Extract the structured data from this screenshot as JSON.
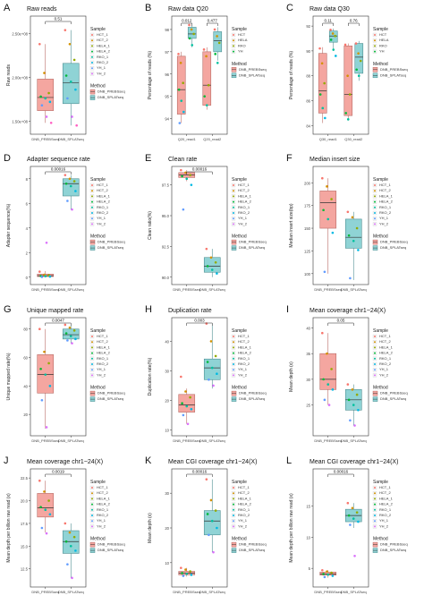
{
  "figure": {
    "method_legend": {
      "title": "Method",
      "items": [
        "DNB_PREBSseq",
        "DNB_SPLATseq"
      ]
    },
    "colors": {
      "box_a": "#F4A6A0",
      "box_a_edge": "#B86A64",
      "box_b": "#8FD3D5",
      "box_b_edge": "#4E8F92",
      "points": [
        "#F8766D",
        "#D39200",
        "#93AA00",
        "#00BA38",
        "#00C19F",
        "#00B9E3",
        "#619CFF",
        "#DB72FB",
        "#FF61C3"
      ]
    }
  },
  "chart_data": [
    {
      "panel": "A",
      "type": "box",
      "title": "Raw reads",
      "ylabel": "Raw reads",
      "categories": [
        "DNB_PREBSseq",
        "DNB_SPLATseq"
      ],
      "yticks": [
        "1.50e+08",
        "2.00e+08",
        "2.50e+08"
      ],
      "ytick_values": [
        1.5,
        2.0,
        2.5
      ],
      "ylim": [
        1.35,
        2.7
      ],
      "significance": [
        {
          "label": "0.51",
          "groups": [
            0,
            1
          ]
        }
      ],
      "boxes": [
        {
          "group": 0,
          "min": 1.48,
          "q1": 1.62,
          "median": 1.77,
          "q3": 1.98,
          "max": 2.38,
          "points": [
            2.38,
            2.05,
            1.82,
            1.78,
            1.76,
            1.72,
            1.68,
            1.55,
            1.48
          ]
        },
        {
          "group": 1,
          "min": 1.45,
          "q1": 1.7,
          "median": 1.94,
          "q3": 2.16,
          "max": 2.54,
          "points": [
            2.54,
            2.38,
            2.2,
            2.02,
            1.95,
            1.86,
            1.76,
            1.55,
            1.45
          ]
        }
      ],
      "sample_legend": {
        "title": "Sample",
        "items": [
          "HCT_1",
          "HCT_2",
          "HELA_1",
          "HELA_2",
          "RKO_1",
          "RKO_2",
          "YH_1",
          "YH_2"
        ]
      },
      "has_method_legend": true
    },
    {
      "panel": "B",
      "type": "box",
      "title": "Raw data Q20",
      "ylabel": "Percentage of reads (%)",
      "categories": [
        "Q20_read1",
        "Q20_read2"
      ],
      "yticks": [
        "94",
        "95",
        "96",
        "97",
        "98"
      ],
      "ytick_values": [
        94,
        95,
        96,
        97,
        98
      ],
      "ylim": [
        93.3,
        98.6
      ],
      "significance": [
        {
          "label": "0.012",
          "groups": [
            0,
            0
          ]
        },
        {
          "label": "0.477",
          "groups": [
            1,
            1
          ]
        }
      ],
      "dodge": true,
      "boxes": [
        {
          "group": 0,
          "series": 0,
          "min": 93.8,
          "q1": 94.2,
          "median": 95.3,
          "q3": 96.8,
          "max": 97.0,
          "points": [
            96.9,
            96.5,
            95.6,
            95.3,
            94.8,
            94.3,
            93.8
          ]
        },
        {
          "group": 0,
          "series": 1,
          "min": 97.2,
          "q1": 97.6,
          "median": 97.8,
          "q3": 98.1,
          "max": 98.2,
          "points": [
            98.2,
            98.0,
            97.8,
            97.6,
            97.3
          ]
        },
        {
          "group": 1,
          "series": 0,
          "min": 94.4,
          "q1": 94.6,
          "median": 95.5,
          "q3": 97.0,
          "max": 97.2,
          "points": [
            97.1,
            96.8,
            95.5,
            95.0,
            94.6
          ]
        },
        {
          "group": 1,
          "series": 1,
          "min": 96.6,
          "q1": 97.0,
          "median": 97.5,
          "q3": 97.9,
          "max": 98.1,
          "points": [
            98.0,
            97.7,
            97.4,
            96.9,
            96.5
          ]
        }
      ],
      "sample_legend": {
        "title": "Sample",
        "items": [
          "HCT",
          "HELA",
          "RKO",
          "YH"
        ]
      },
      "has_method_legend": true
    },
    {
      "panel": "C",
      "type": "box",
      "title": "Raw data Q30",
      "ylabel": "Percentage of reads (%)",
      "categories": [
        "Q30_read1",
        "Q30_read2"
      ],
      "yticks": [
        "84",
        "86",
        "88",
        "90",
        "92"
      ],
      "ytick_values": [
        84,
        86,
        88,
        90,
        92
      ],
      "ylim": [
        83.3,
        92.8
      ],
      "significance": [
        {
          "label": "0.11",
          "groups": [
            0,
            0
          ]
        },
        {
          "label": "0.76",
          "groups": [
            1,
            1
          ]
        }
      ],
      "dodge": true,
      "boxes": [
        {
          "group": 0,
          "series": 0,
          "min": 84.2,
          "q1": 85.0,
          "median": 86.8,
          "q3": 89.8,
          "max": 90.3,
          "points": [
            90.2,
            89.0,
            87.4,
            86.5,
            85.4,
            84.6
          ]
        },
        {
          "group": 0,
          "series": 1,
          "min": 90.0,
          "q1": 90.7,
          "median": 91.2,
          "q3": 91.6,
          "max": 91.8,
          "points": [
            91.7,
            91.4,
            91.2,
            90.9,
            90.1,
            89.6
          ]
        },
        {
          "group": 1,
          "series": 0,
          "min": 84.4,
          "q1": 84.8,
          "median": 86.5,
          "q3": 90.4,
          "max": 90.6,
          "points": [
            90.5,
            88.0,
            86.5,
            85.0,
            84.5
          ]
        },
        {
          "group": 1,
          "series": 1,
          "min": 87.6,
          "q1": 88.2,
          "median": 89.5,
          "q3": 90.6,
          "max": 90.8,
          "points": [
            90.6,
            89.8,
            89.2,
            88.5,
            88.0
          ]
        }
      ],
      "sample_legend": {
        "title": "Sample",
        "items": [
          "HCT",
          "HELA",
          "RKO",
          "YH"
        ]
      },
      "has_method_legend": true
    },
    {
      "panel": "D",
      "type": "box",
      "title": "Adapter sequence rate",
      "ylabel": "Adapter sequence(%)",
      "categories": [
        "DNB_PREBSseq",
        "DNB_SPLATseq"
      ],
      "yticks": [
        "0",
        "2",
        "4",
        "6",
        "8"
      ],
      "ytick_values": [
        0,
        2,
        4,
        6,
        8
      ],
      "ylim": [
        -0.6,
        9.0
      ],
      "significance": [
        {
          "label": "0.00016",
          "groups": [
            0,
            1
          ]
        }
      ],
      "boxes": [
        {
          "group": 0,
          "min": 0.0,
          "q1": 0.05,
          "median": 0.12,
          "q3": 0.25,
          "max": 0.5,
          "points": [
            0.45,
            0.2,
            0.15,
            0.1,
            0.08,
            0.05,
            0.02,
            2.8
          ]
        },
        {
          "group": 1,
          "min": 5.5,
          "q1": 6.6,
          "median": 7.6,
          "q3": 8.0,
          "max": 8.3,
          "points": [
            8.3,
            8.0,
            7.8,
            7.6,
            7.4,
            7.0,
            6.2,
            5.5
          ]
        }
      ],
      "sample_legend": {
        "title": "Sample",
        "items": [
          "HCT_1",
          "HCT_2",
          "HELA_1",
          "HELA_2",
          "RKO_1",
          "RKO_2",
          "YH_1",
          "YH_2"
        ]
      },
      "has_method_legend": true
    },
    {
      "panel": "E",
      "type": "box",
      "title": "Clean rate",
      "ylabel": "Clean ratio(%)",
      "categories": [
        "DNB_PREBSseq",
        "DNB_SPLATseq"
      ],
      "yticks": [
        "90.0",
        "92.5",
        "95.0",
        "97.5"
      ],
      "ytick_values": [
        90,
        92.5,
        95,
        97.5
      ],
      "ylim": [
        89.4,
        99.0
      ],
      "significance": [
        {
          "label": "0.00016",
          "groups": [
            0,
            1
          ]
        }
      ],
      "boxes": [
        {
          "group": 0,
          "min": 97.8,
          "q1": 98.1,
          "median": 98.3,
          "q3": 98.5,
          "max": 98.7,
          "points": [
            98.7,
            98.5,
            98.3,
            98.2,
            98.0,
            97.5,
            95.5
          ]
        },
        {
          "group": 1,
          "min": 90.0,
          "q1": 90.4,
          "median": 90.9,
          "q3": 91.6,
          "max": 92.3,
          "points": [
            92.3,
            91.6,
            91.2,
            90.9,
            90.6,
            90.3
          ]
        }
      ],
      "sample_legend": {
        "title": "Sample",
        "items": [
          "HCT_1",
          "HCT_2",
          "HELA_1",
          "HELA_2",
          "RKO_1",
          "RKO_2",
          "YH_1",
          "YH_2"
        ]
      },
      "has_method_legend": true
    },
    {
      "panel": "F",
      "type": "box",
      "title": "Median insert size",
      "ylabel": "Median insert size(bp)",
      "categories": [
        "DNB_PREBSseq",
        "DNB_SPLATseq"
      ],
      "yticks": [
        "100",
        "125",
        "150",
        "175",
        "200"
      ],
      "ytick_values": [
        100,
        125,
        150,
        175,
        200
      ],
      "ylim": [
        88,
        218
      ],
      "significance": [],
      "boxes": [
        {
          "group": 0,
          "min": 100,
          "q1": 150,
          "median": 178,
          "q3": 191,
          "max": 205,
          "points": [
            205,
            196,
            182,
            170,
            160,
            145,
            102
          ]
        },
        {
          "group": 1,
          "min": 93,
          "q1": 128,
          "median": 140,
          "q3": 160,
          "max": 168,
          "points": [
            168,
            162,
            150,
            142,
            136,
            126,
            95
          ]
        }
      ],
      "sample_legend": {
        "title": "Sample",
        "items": [
          "HCT_1",
          "HCT_2",
          "HELA_1",
          "HELA_2",
          "RKO_1",
          "RKO_2",
          "YH_1",
          "YH_2"
        ]
      },
      "has_method_legend": true
    },
    {
      "panel": "G",
      "type": "box",
      "title": "Unique mapped rate",
      "ylabel": "Unique mapped rate(%)",
      "categories": [
        "DNB_PREBSseq",
        "DNB_SPLATseq"
      ],
      "yticks": [
        "20",
        "40",
        "60",
        "80"
      ],
      "ytick_values": [
        20,
        40,
        60,
        80
      ],
      "ylim": [
        5,
        88
      ],
      "significance": [
        {
          "label": "0.0047",
          "groups": [
            0,
            1
          ]
        }
      ],
      "boxes": [
        {
          "group": 0,
          "min": 10,
          "q1": 35,
          "median": 48,
          "q3": 62,
          "max": 80,
          "points": [
            80,
            64,
            56,
            52,
            48,
            40,
            30,
            11
          ]
        },
        {
          "group": 1,
          "min": 70,
          "q1": 73,
          "median": 76,
          "q3": 80,
          "max": 83,
          "points": [
            83,
            81,
            79,
            77,
            75,
            73,
            72,
            70
          ]
        }
      ],
      "sample_legend": {
        "title": "Sample",
        "items": [
          "HCT_1",
          "HCT_2",
          "HELA_1",
          "HELA_2",
          "RKO_1",
          "RKO_2",
          "YH_1",
          "YH_2"
        ]
      },
      "has_method_legend": true
    },
    {
      "panel": "H",
      "type": "box",
      "title": "Duplication rate",
      "ylabel": "Duplication rate(%)",
      "categories": [
        "DNB_PREBSseq",
        "DNB_SPLATseq"
      ],
      "yticks": [
        "10",
        "20",
        "30",
        "40"
      ],
      "ytick_values": [
        10,
        20,
        30,
        40
      ],
      "ylim": [
        8,
        48
      ],
      "significance": [
        {
          "label": "0.003",
          "groups": [
            0,
            1
          ]
        }
      ],
      "boxes": [
        {
          "group": 0,
          "min": 12,
          "q1": 16,
          "median": 18.5,
          "q3": 22,
          "max": 24,
          "points": [
            28,
            23,
            21,
            19,
            18,
            17,
            15,
            12
          ]
        },
        {
          "group": 1,
          "min": 24,
          "q1": 27,
          "median": 31,
          "q3": 34,
          "max": 46,
          "points": [
            46,
            40,
            35,
            33,
            31,
            29,
            27,
            25
          ]
        }
      ],
      "sample_legend": {
        "title": "Sample",
        "items": [
          "HCT_1",
          "HCT_2",
          "HELA_1",
          "HELA_2",
          "RKO_1",
          "RKO_2",
          "YH_1",
          "YH_2"
        ]
      },
      "has_method_legend": true
    },
    {
      "panel": "I",
      "type": "box",
      "title": "Mean coverage chr1~24(X)",
      "ylabel": "Mean depth (x)",
      "categories": [
        "DNB_PREBSseq",
        "DNB_SPLATseq"
      ],
      "yticks": [
        "25",
        "30",
        "35",
        "40"
      ],
      "ytick_values": [
        25,
        30,
        35,
        40
      ],
      "ylim": [
        19,
        42
      ],
      "significance": [
        {
          "label": "0.05",
          "groups": [
            0,
            1
          ]
        }
      ],
      "boxes": [
        {
          "group": 0,
          "min": 25,
          "q1": 28,
          "median": 30,
          "q3": 35,
          "max": 39,
          "points": [
            39,
            35,
            32,
            30,
            29,
            28,
            26,
            25
          ]
        },
        {
          "group": 1,
          "min": 21,
          "q1": 24,
          "median": 26,
          "q3": 28,
          "max": 29,
          "points": [
            29,
            28,
            27,
            26,
            25,
            24,
            22,
            21
          ]
        }
      ],
      "sample_legend": {
        "title": "Sample",
        "items": [
          "HCT_1",
          "HCT_2",
          "HELA_1",
          "HELA_2",
          "RKO_1",
          "RKO_2",
          "YH_1",
          "YH_2"
        ]
      },
      "has_method_legend": true
    },
    {
      "panel": "J",
      "type": "box",
      "title": "Mean coverage chr1~24(X)",
      "ylabel": "Mean depth per billion raw read (x)",
      "categories": [
        "DNB_PREBSseq",
        "DNB_SPLATseq"
      ],
      "yticks": [
        "12.5",
        "15.0",
        "17.5",
        "20.0",
        "22.5"
      ],
      "ytick_values": [
        12.5,
        15,
        17.5,
        20,
        22.5
      ],
      "ylim": [
        10.5,
        23.5
      ],
      "significance": [
        {
          "label": "0.0019",
          "groups": [
            0,
            1
          ]
        }
      ],
      "boxes": [
        {
          "group": 0,
          "min": 16.5,
          "q1": 18.2,
          "median": 19.2,
          "q3": 20.8,
          "max": 22.2,
          "points": [
            22.2,
            21,
            20,
            19.3,
            19,
            18.5,
            17,
            16.4
          ]
        },
        {
          "group": 1,
          "min": 11.5,
          "q1": 14.2,
          "median": 15.5,
          "q3": 16.7,
          "max": 17.5,
          "points": [
            17.5,
            16.5,
            16,
            15.5,
            15,
            14.5,
            13,
            11.5
          ]
        }
      ],
      "sample_legend": {
        "title": "Sample",
        "items": [
          "HCT_1",
          "HCT_2",
          "HELA_1",
          "HELA_2",
          "RKO_1",
          "RKO_2",
          "YH_1",
          "YH_2"
        ]
      },
      "has_method_legend": true
    },
    {
      "panel": "K",
      "type": "box",
      "title": "Mean CGI coverage chr1~24(X)",
      "ylabel": "Mean depth (x)",
      "categories": [
        "DNB_PREBSseq",
        "DNB_SPLATseq"
      ],
      "yticks": [
        "10",
        "20",
        "30"
      ],
      "ytick_values": [
        10,
        20,
        30
      ],
      "ylim": [
        3,
        37
      ],
      "significance": [
        {
          "label": "0.00016",
          "groups": [
            0,
            1
          ]
        }
      ],
      "boxes": [
        {
          "group": 0,
          "min": 6,
          "q1": 6.5,
          "median": 7,
          "q3": 7.5,
          "max": 8.5,
          "points": [
            8.5,
            8,
            7.5,
            7,
            6.8,
            6.5,
            6.2
          ]
        },
        {
          "group": 1,
          "min": 13,
          "q1": 18,
          "median": 22,
          "q3": 25,
          "max": 34,
          "points": [
            34,
            28,
            25,
            24,
            22,
            20,
            18,
            13
          ]
        }
      ],
      "sample_legend": {
        "title": "Sample",
        "items": [
          "HCT_1",
          "HCT_2",
          "HELA_1",
          "HELA_2",
          "RKO_1",
          "RKO_2",
          "YH_1",
          "YH_2"
        ]
      },
      "has_method_legend": true
    },
    {
      "panel": "L",
      "type": "box",
      "title": "Mean CGI coverage chr1~24(X)",
      "ylabel": "Mean depth per billion raw read (x)",
      "categories": [
        "DNB_PREBSseq",
        "DNB_SPLATseq"
      ],
      "yticks": [
        "5",
        "10",
        "15"
      ],
      "ytick_values": [
        5,
        10,
        15
      ],
      "ylim": [
        2,
        21
      ],
      "significance": [
        {
          "label": "0.00016",
          "groups": [
            0,
            1
          ]
        }
      ],
      "boxes": [
        {
          "group": 0,
          "min": 3.5,
          "q1": 3.9,
          "median": 4.1,
          "q3": 4.4,
          "max": 4.7,
          "points": [
            4.7,
            4.5,
            4.3,
            4.1,
            4.0,
            3.8,
            3.6
          ]
        },
        {
          "group": 1,
          "min": 11.5,
          "q1": 12.5,
          "median": 13.5,
          "q3": 14.5,
          "max": 15.5,
          "points": [
            15.5,
            14.7,
            14.0,
            13.5,
            13.0,
            12.5,
            12.0,
            7.0
          ]
        }
      ],
      "sample_legend": {
        "title": "Sample",
        "items": [
          "HCT_1",
          "HCT_2",
          "HELA_1",
          "HELA_2",
          "RKO_1",
          "RKO_2",
          "YH_1",
          "YH_2"
        ]
      },
      "has_method_legend": true
    }
  ]
}
